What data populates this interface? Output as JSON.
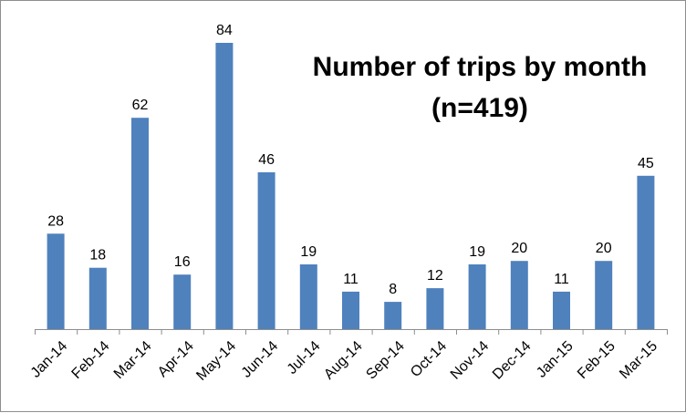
{
  "chart_data": {
    "type": "bar",
    "title_lines": [
      "Number of trips by month",
      "(n=419)"
    ],
    "xlabel": "",
    "ylabel": "",
    "categories": [
      "Jan-14",
      "Feb-14",
      "Mar-14",
      "Apr-14",
      "May-14",
      "Jun-14",
      "Jul-14",
      "Aug-14",
      "Sep-14",
      "Oct-14",
      "Nov-14",
      "Dec-14",
      "Jan-15",
      "Feb-15",
      "Mar-15"
    ],
    "values": [
      28,
      18,
      62,
      16,
      84,
      46,
      19,
      11,
      8,
      12,
      19,
      20,
      11,
      20,
      45
    ],
    "ylim": [
      0,
      84
    ],
    "grid": false,
    "legend": "none",
    "bar_color": "#4f81bd",
    "data_labels": true
  }
}
